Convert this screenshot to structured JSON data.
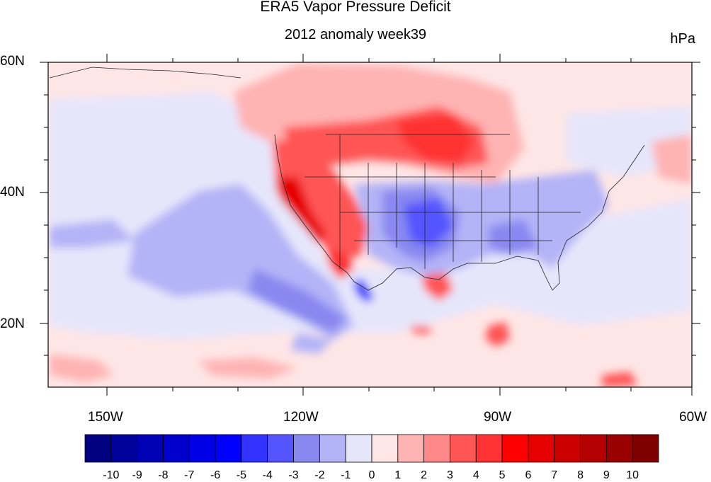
{
  "title": "ERA5 Vapor Pressure Deficit",
  "subtitle": "2012 anomaly week39",
  "units": "hPa",
  "lat_labels": [
    "60N",
    "40N",
    "20N"
  ],
  "lon_labels": [
    "150W",
    "120W",
    "90W",
    "60W"
  ],
  "colorbar": {
    "tick_labels": [
      "-10",
      "-9",
      "-8",
      "-7",
      "-6",
      "-5",
      "-4",
      "-3",
      "-2",
      "-1",
      "0",
      "1",
      "2",
      "3",
      "4",
      "5",
      "6",
      "7",
      "8",
      "9",
      "10"
    ],
    "colors": [
      "#000080",
      "#00009a",
      "#0000b4",
      "#0000cd",
      "#0000e6",
      "#0000ff",
      "#3333ff",
      "#5555ff",
      "#8888f0",
      "#b3b3f7",
      "#e6e6fb",
      "#ffe6e6",
      "#ffb3b3",
      "#ff8888",
      "#ff5555",
      "#ff3333",
      "#ff0000",
      "#e60000",
      "#cd0000",
      "#b40000",
      "#9a0000",
      "#800000"
    ]
  },
  "map_extent": {
    "lon_range": [
      -160,
      -60
    ],
    "lat_range": [
      10,
      60
    ]
  }
}
